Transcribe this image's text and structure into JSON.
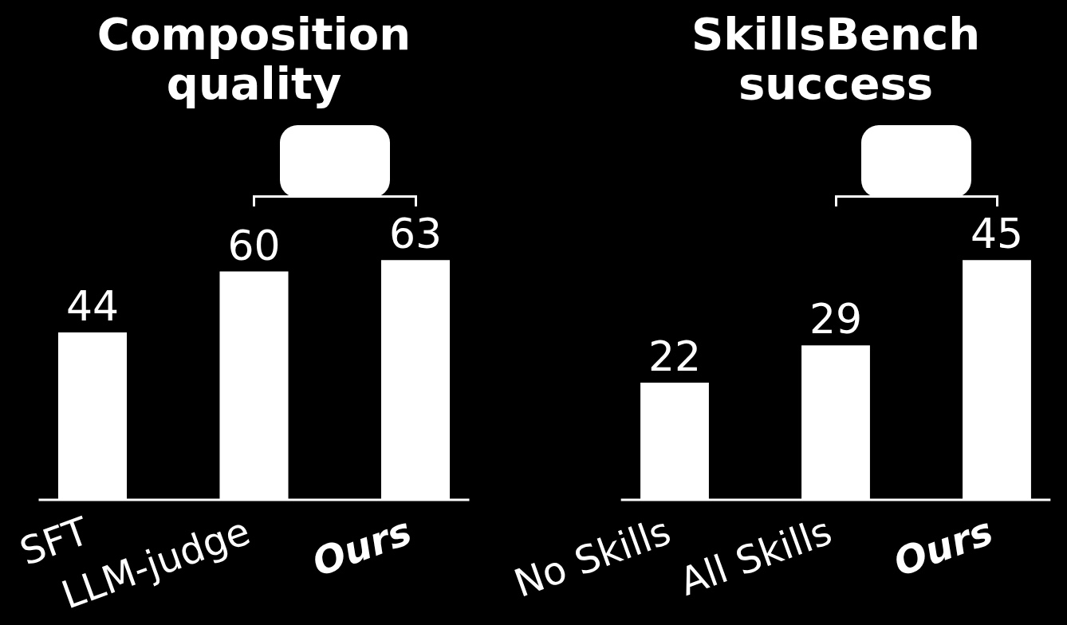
{
  "chart_data": [
    {
      "type": "bar",
      "title": "Composition quality",
      "categories": [
        "SFT",
        "LLM-judge",
        "Ours"
      ],
      "values": [
        44,
        60,
        63
      ],
      "color": "#ffffff",
      "data_labels": true,
      "grid": false,
      "legend": false,
      "tick_labels": "x"
    },
    {
      "type": "bar",
      "title": "SkillsBench success",
      "categories": [
        "No Skills",
        "All Skills",
        "Ours"
      ],
      "values": [
        22,
        29,
        45
      ],
      "color": "#ffffff",
      "data_labels": true,
      "grid": false,
      "legend": false,
      "tick_labels": "x"
    }
  ]
}
